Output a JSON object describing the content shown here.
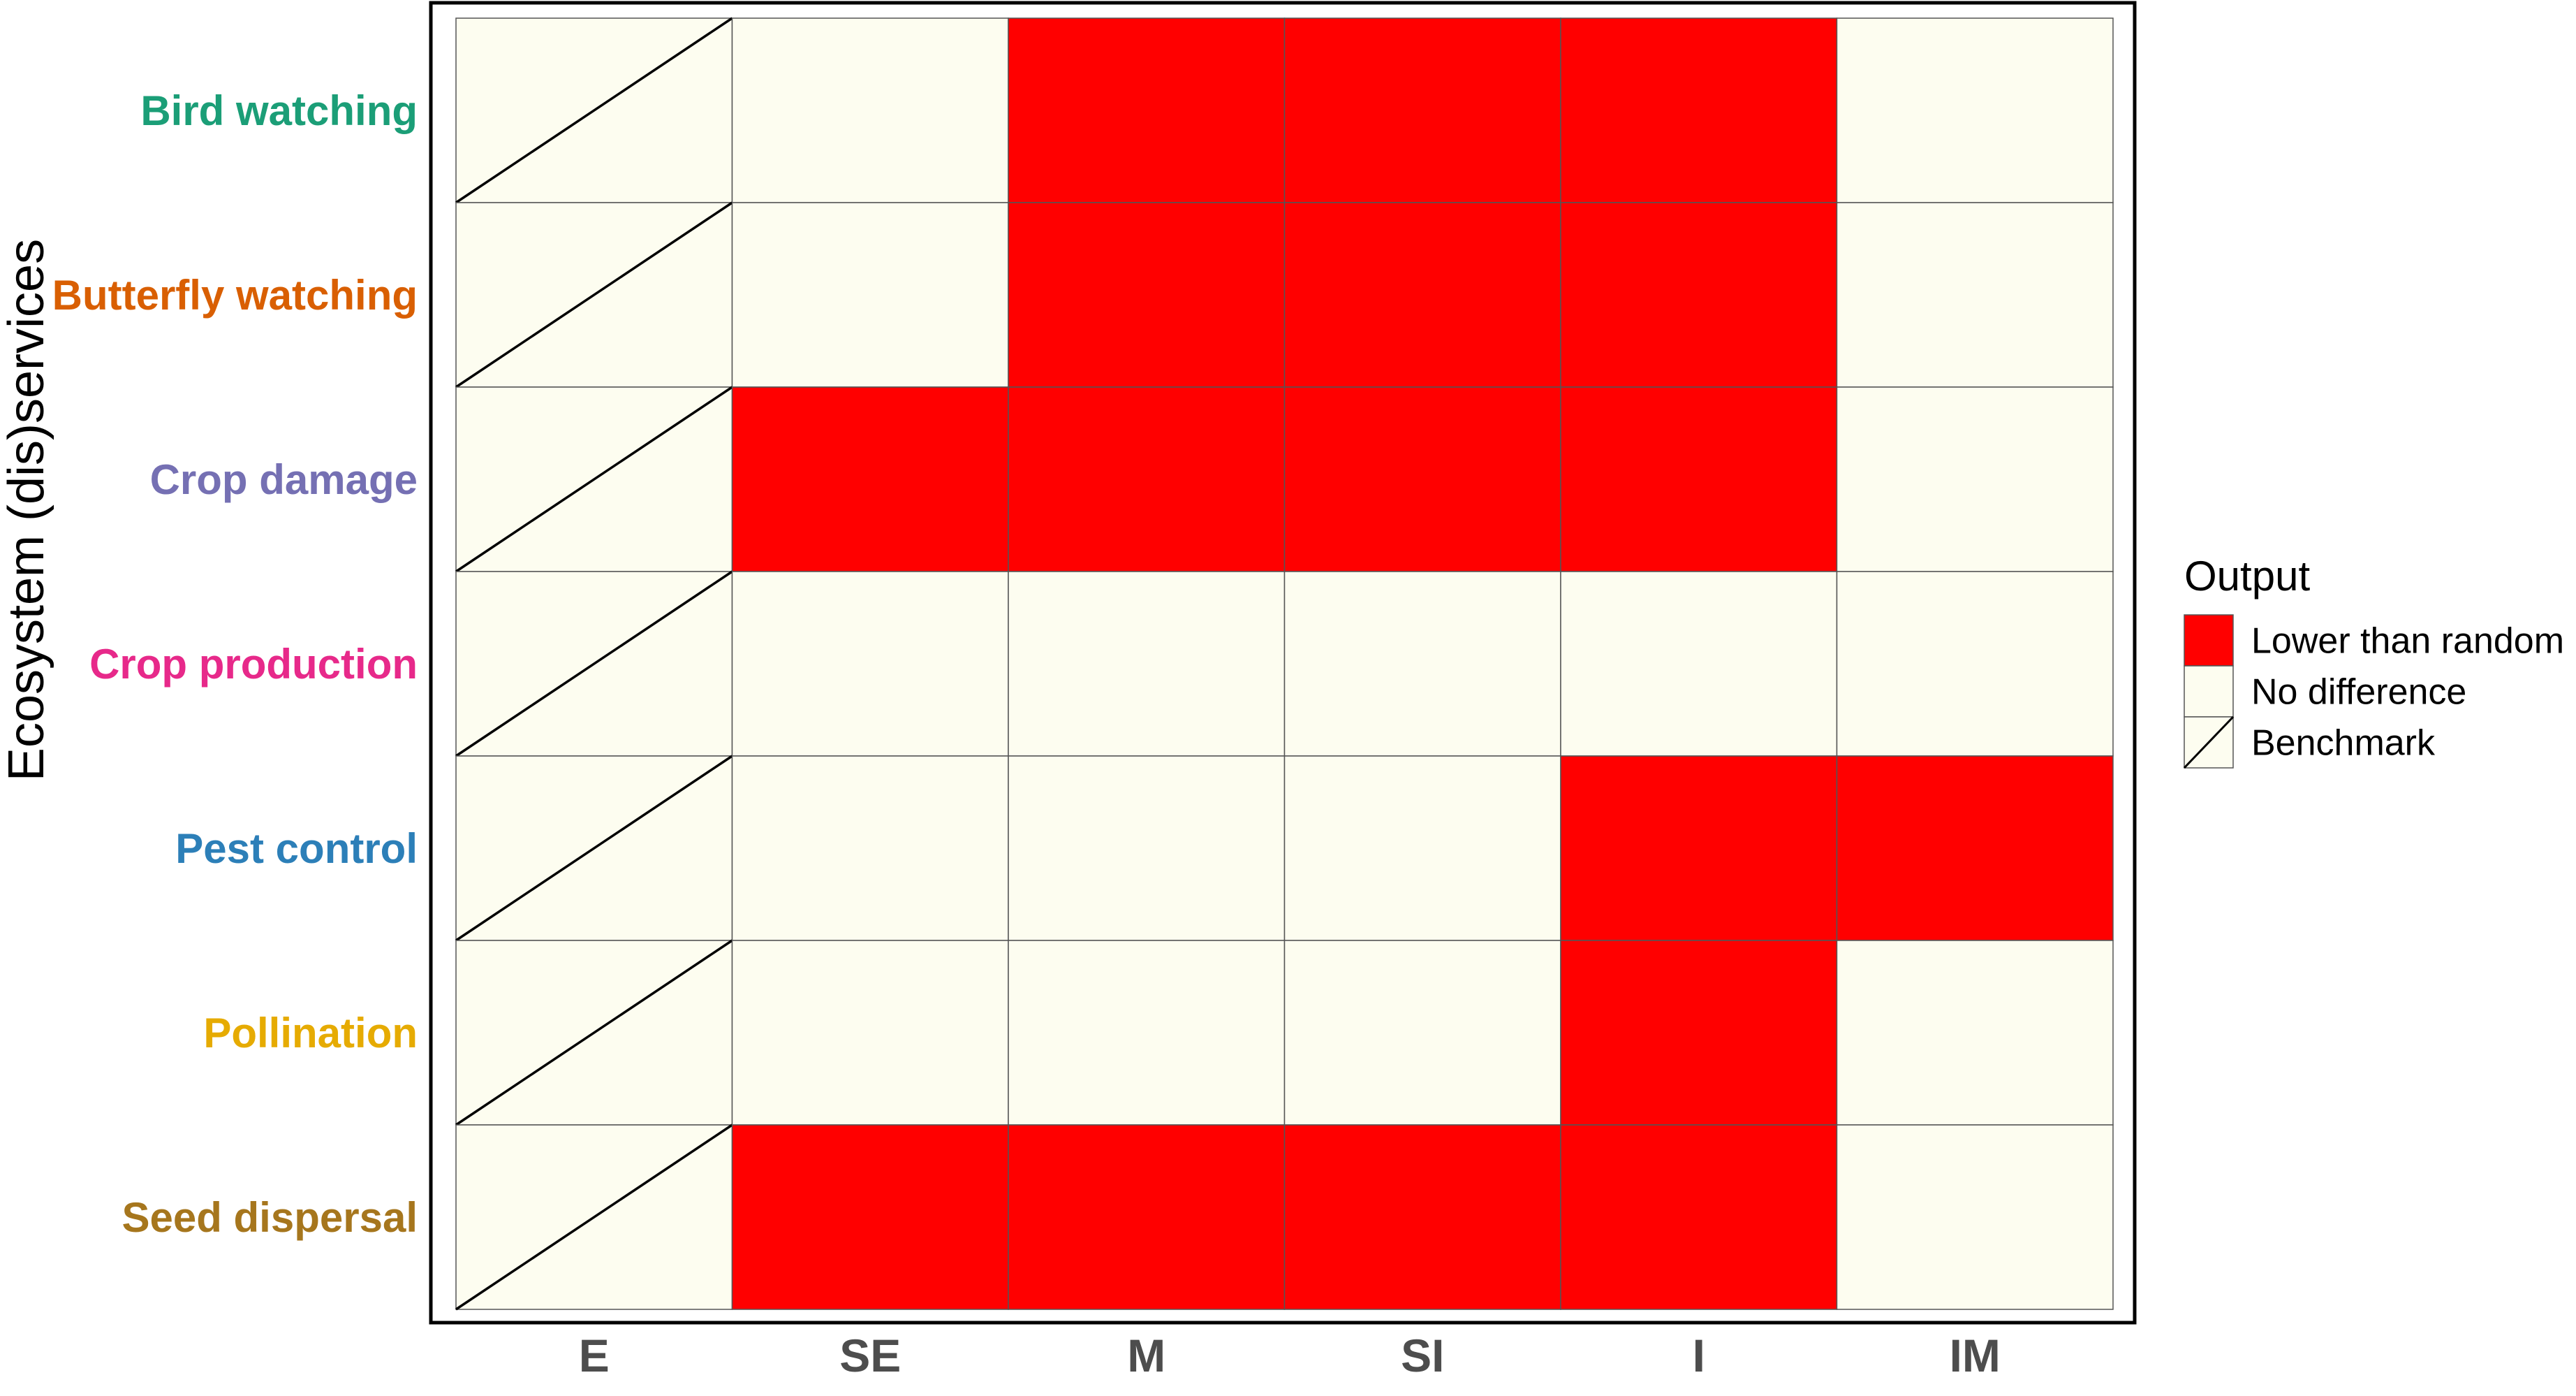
{
  "chart_data": {
    "type": "heatmap",
    "ylabel": "Ecosystem (dis)services",
    "xlabel": "",
    "x_categories": [
      "E",
      "SE",
      "M",
      "SI",
      "I",
      "IM"
    ],
    "y_categories": [
      {
        "label": "Bird watching",
        "color": "#1b9e77"
      },
      {
        "label": "Butterfly watching",
        "color": "#d95f02"
      },
      {
        "label": "Crop damage",
        "color": "#7570b3"
      },
      {
        "label": "Crop production",
        "color": "#e7298a"
      },
      {
        "label": "Pest control",
        "color": "#2c7fb8"
      },
      {
        "label": "Pollination",
        "color": "#e6ab02"
      },
      {
        "label": "Seed dispersal",
        "color": "#a6761d"
      }
    ],
    "cells": [
      [
        "Benchmark",
        "No difference",
        "Lower than random",
        "Lower than random",
        "Lower than random",
        "No difference"
      ],
      [
        "Benchmark",
        "No difference",
        "Lower than random",
        "Lower than random",
        "Lower than random",
        "No difference"
      ],
      [
        "Benchmark",
        "Lower than random",
        "Lower than random",
        "Lower than random",
        "Lower than random",
        "No difference"
      ],
      [
        "Benchmark",
        "No difference",
        "No difference",
        "No difference",
        "No difference",
        "No difference"
      ],
      [
        "Benchmark",
        "No difference",
        "No difference",
        "No difference",
        "Lower than random",
        "Lower than random"
      ],
      [
        "Benchmark",
        "No difference",
        "No difference",
        "No difference",
        "Lower than random",
        "No difference"
      ],
      [
        "Benchmark",
        "Lower than random",
        "Lower than random",
        "Lower than random",
        "Lower than random",
        "No difference"
      ]
    ],
    "legend": {
      "title": "Output",
      "position": "right",
      "items": [
        {
          "label": "Lower than random",
          "color": "#ff0000",
          "pattern": "fill"
        },
        {
          "label": "No difference",
          "color": "#fdfdf0",
          "pattern": "fill"
        },
        {
          "label": "Benchmark",
          "color": "#fdfdf0",
          "pattern": "diagonal"
        }
      ]
    },
    "grid": false
  }
}
